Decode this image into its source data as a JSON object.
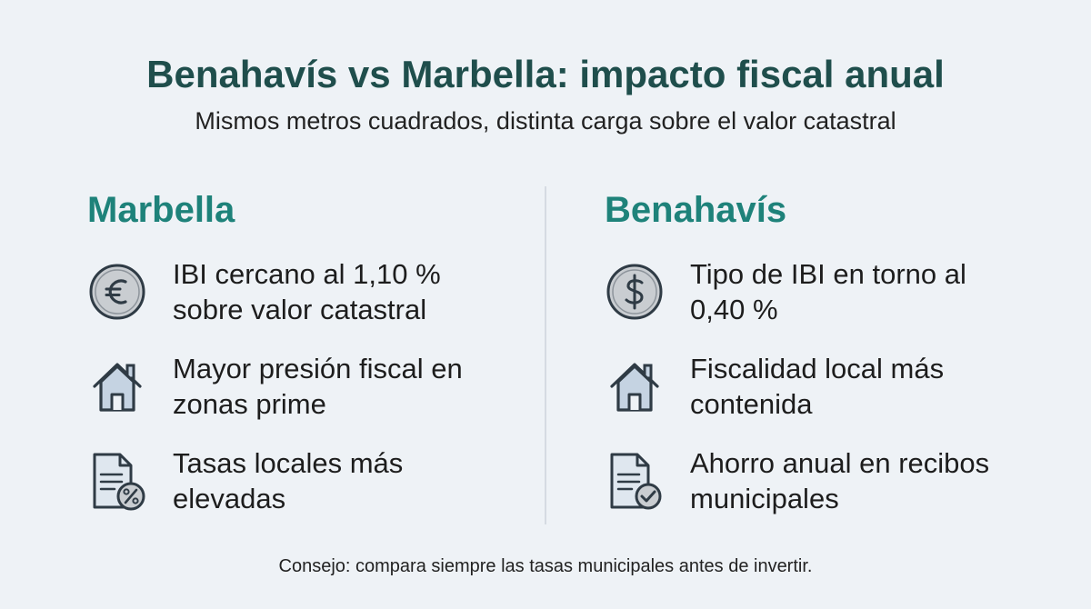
{
  "title": "Benahavís vs Marbella: impacto fiscal anual",
  "subtitle": "Mismos metros cuadrados, distinta carga sobre el valor catastral",
  "columns": [
    {
      "heading": "Marbella",
      "items": [
        {
          "icon": "euro-coin-icon",
          "text": "IBI cercano al 1,10 % sobre valor catastral"
        },
        {
          "icon": "house-icon",
          "text": "Mayor presión fiscal en zonas prime"
        },
        {
          "icon": "document-percent-icon",
          "text": "Tasas locales más elevadas"
        }
      ]
    },
    {
      "heading": "Benahavís",
      "items": [
        {
          "icon": "dollar-coin-icon",
          "text": "Tipo de IBI en torno al 0,40 %"
        },
        {
          "icon": "house-icon",
          "text": "Fiscalidad local más contenida"
        },
        {
          "icon": "document-check-icon",
          "text": "Ahorro anual en recibos municipales"
        }
      ]
    }
  ],
  "footer": "Consejo: compara siempre las tasas municipales antes de invertir.",
  "colors": {
    "title": "#1f4e4c",
    "heading": "#1e827a",
    "icon_fill": "#c9cdd1",
    "icon_house_fill": "#c5d3e2",
    "icon_stroke": "#2f3b45",
    "background": "#eef2f6"
  }
}
